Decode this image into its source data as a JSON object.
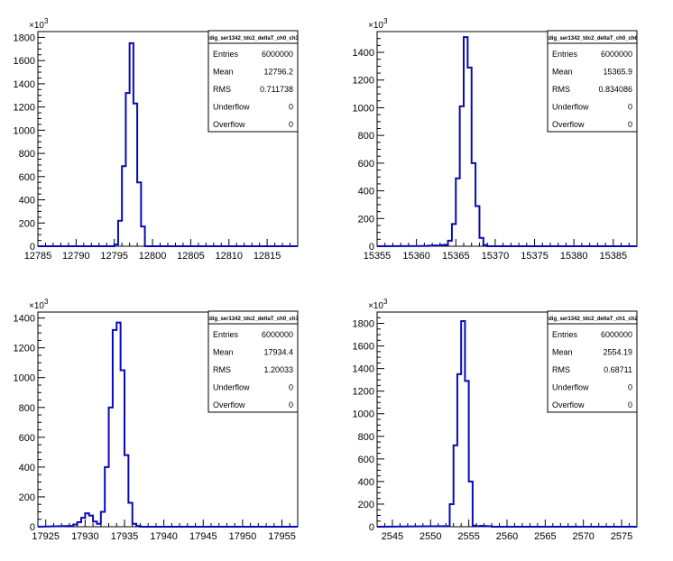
{
  "chart_data": [
    {
      "type": "histogram",
      "title": "tdig_ser1342_tdc2_deltaT_ch0_ch3",
      "y_exponent": "×10",
      "y_exponent_power": "3",
      "xlim": [
        12785,
        12819
      ],
      "ylim": [
        0,
        1850
      ],
      "x_ticks": [
        12785,
        12790,
        12795,
        12800,
        12805,
        12810,
        12815
      ],
      "y_ticks": [
        0,
        200,
        400,
        600,
        800,
        1000,
        1200,
        1400,
        1600,
        1800
      ],
      "bin_width": 0.5,
      "bins": [
        [
          12794.5,
          0
        ],
        [
          12795.0,
          15
        ],
        [
          12795.5,
          220
        ],
        [
          12796.0,
          690
        ],
        [
          12796.5,
          1320
        ],
        [
          12797.0,
          1750
        ],
        [
          12797.5,
          1230
        ],
        [
          12798.0,
          550
        ],
        [
          12798.5,
          170
        ],
        [
          12799.0,
          0
        ]
      ],
      "stats": [
        {
          "label": "Entries",
          "value": "6000000"
        },
        {
          "label": "Mean",
          "value": "12796.2"
        },
        {
          "label": "RMS",
          "value": "0.711738"
        },
        {
          "label": "Underflow",
          "value": "0"
        },
        {
          "label": "Overflow",
          "value": "0"
        }
      ],
      "line_color": "#0a0ab4"
    },
    {
      "type": "histogram",
      "title": "tdig_ser1342_tdc2_deltaT_ch0_ch6",
      "y_exponent": "×10",
      "y_exponent_power": "3",
      "xlim": [
        15355,
        15388
      ],
      "ylim": [
        0,
        1550
      ],
      "x_ticks": [
        15355,
        15360,
        15365,
        15370,
        15375,
        15380,
        15385
      ],
      "y_ticks": [
        0,
        200,
        400,
        600,
        800,
        1000,
        1200,
        1400
      ],
      "bin_width": 0.5,
      "bins": [
        [
          15361.0,
          2
        ],
        [
          15361.5,
          4
        ],
        [
          15362.0,
          6
        ],
        [
          15362.5,
          5
        ],
        [
          15363.0,
          8
        ],
        [
          15363.5,
          10
        ],
        [
          15364.0,
          40
        ],
        [
          15364.5,
          160
        ],
        [
          15365.0,
          490
        ],
        [
          15365.5,
          1010
        ],
        [
          15366.0,
          1510
        ],
        [
          15366.5,
          1290
        ],
        [
          15367.0,
          600
        ],
        [
          15367.5,
          290
        ],
        [
          15368.0,
          60
        ],
        [
          15368.5,
          8
        ],
        [
          15369.0,
          0
        ]
      ],
      "stats": [
        {
          "label": "Entries",
          "value": "6000000"
        },
        {
          "label": "Mean",
          "value": "15365.9"
        },
        {
          "label": "RMS",
          "value": "0.834086"
        },
        {
          "label": "Underflow",
          "value": "0"
        },
        {
          "label": "Overflow",
          "value": "0"
        }
      ],
      "line_color": "#0a0ab4"
    },
    {
      "type": "histogram",
      "title": "tdig_ser1342_tdc2_deltaT_ch0_ch7",
      "y_exponent": "×10",
      "y_exponent_power": "3",
      "xlim": [
        17924,
        17957
      ],
      "ylim": [
        0,
        1440
      ],
      "x_ticks": [
        17925,
        17930,
        17935,
        17940,
        17945,
        17950,
        17955
      ],
      "y_ticks": [
        0,
        200,
        400,
        600,
        800,
        1000,
        1200,
        1400
      ],
      "bin_width": 0.5,
      "bins": [
        [
          17928.0,
          5
        ],
        [
          17928.5,
          15
        ],
        [
          17929.0,
          30
        ],
        [
          17929.5,
          60
        ],
        [
          17930.0,
          90
        ],
        [
          17930.5,
          75
        ],
        [
          17931.0,
          35
        ],
        [
          17931.5,
          20
        ],
        [
          17932.0,
          100
        ],
        [
          17932.5,
          400
        ],
        [
          17933.0,
          800
        ],
        [
          17933.5,
          1320
        ],
        [
          17934.0,
          1370
        ],
        [
          17934.5,
          1050
        ],
        [
          17935.0,
          480
        ],
        [
          17935.5,
          160
        ],
        [
          17936.0,
          20
        ],
        [
          17936.5,
          5
        ],
        [
          17937.0,
          0
        ]
      ],
      "stats": [
        {
          "label": "Entries",
          "value": "6000000"
        },
        {
          "label": "Mean",
          "value": "17934.4"
        },
        {
          "label": "RMS",
          "value": "1.20033"
        },
        {
          "label": "Underflow",
          "value": "0"
        },
        {
          "label": "Overflow",
          "value": "0"
        }
      ],
      "line_color": "#0a0ab4"
    },
    {
      "type": "histogram",
      "title": "tdig_ser1342_tdc2_deltaT_ch1_ch2",
      "y_exponent": "×10",
      "y_exponent_power": "3",
      "xlim": [
        2543,
        2577
      ],
      "ylim": [
        0,
        1900
      ],
      "x_ticks": [
        2545,
        2550,
        2555,
        2560,
        2565,
        2570,
        2575
      ],
      "y_ticks": [
        0,
        200,
        400,
        600,
        800,
        1000,
        1200,
        1400,
        1600,
        1800
      ],
      "bin_width": 0.5,
      "bins": [
        [
          2552.0,
          5
        ],
        [
          2552.5,
          200
        ],
        [
          2553.0,
          720
        ],
        [
          2553.5,
          1350
        ],
        [
          2554.0,
          1820
        ],
        [
          2554.5,
          1290
        ],
        [
          2555.0,
          400
        ],
        [
          2555.5,
          10
        ],
        [
          2556.0,
          5
        ],
        [
          2556.5,
          8
        ],
        [
          2557.0,
          6
        ],
        [
          2557.5,
          4
        ],
        [
          2558.0,
          0
        ]
      ],
      "stats": [
        {
          "label": "Entries",
          "value": "6000000"
        },
        {
          "label": "Mean",
          "value": "2554.19"
        },
        {
          "label": "RMS",
          "value": "0.68711"
        },
        {
          "label": "Underflow",
          "value": "0"
        },
        {
          "label": "Overflow",
          "value": "0"
        }
      ],
      "line_color": "#0a0ab4"
    }
  ]
}
